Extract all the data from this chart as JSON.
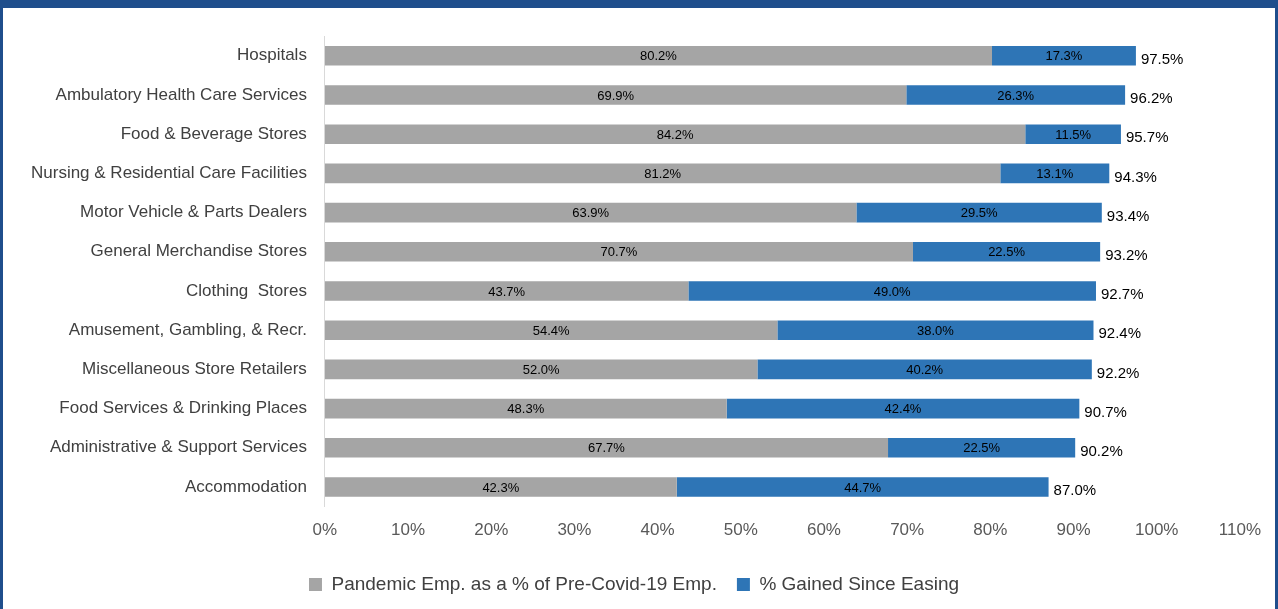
{
  "chart_data": {
    "type": "bar",
    "orientation": "horizontal",
    "stacked": true,
    "categories": [
      "Hospitals",
      "Ambulatory Health Care Services",
      "Food & Beverage Stores",
      "Nursing & Residential Care Facilities",
      "Motor Vehicle & Parts Dealers",
      "General Merchandise Stores",
      "Clothing  Stores",
      "Amusement, Gambling, & Recr.",
      "Miscellaneous Store Retailers",
      "Food Services & Drinking Places",
      "Administrative & Support Services",
      "Accommodation"
    ],
    "series": [
      {
        "name": "Pandemic Emp. as a % of Pre-Covid-19 Emp.",
        "color": "#a5a5a5",
        "values": [
          80.2,
          69.9,
          84.2,
          81.2,
          63.9,
          70.7,
          43.7,
          54.4,
          52.0,
          48.3,
          67.7,
          42.3
        ],
        "value_labels": [
          "80.2%",
          "69.9%",
          "84.2%",
          "81.2%",
          "63.9%",
          "70.7%",
          "43.7%",
          "54.4%",
          "52.0%",
          "48.3%",
          "67.7%",
          "42.3%"
        ]
      },
      {
        "name": "% Gained Since Easing",
        "color": "#2e75b6",
        "values": [
          17.3,
          26.3,
          11.5,
          13.1,
          29.5,
          22.5,
          49.0,
          38.0,
          40.2,
          42.4,
          22.5,
          44.7
        ],
        "value_labels": [
          "17.3%",
          "26.3%",
          "11.5%",
          "13.1%",
          "29.5%",
          "22.5%",
          "49.0%",
          "38.0%",
          "40.2%",
          "42.4%",
          "22.5%",
          "44.7%"
        ]
      }
    ],
    "totals": [
      "97.5%",
      "96.2%",
      "95.7%",
      "94.3%",
      "93.4%",
      "93.2%",
      "92.7%",
      "92.4%",
      "92.2%",
      "90.7%",
      "90.2%",
      "87.0%"
    ],
    "xlim": [
      0,
      110
    ],
    "xticks": [
      {
        "value": 0,
        "label": "0%"
      },
      {
        "value": 10,
        "label": "10%"
      },
      {
        "value": 20,
        "label": "20%"
      },
      {
        "value": 30,
        "label": "30%"
      },
      {
        "value": 40,
        "label": "40%"
      },
      {
        "value": 50,
        "label": "50%"
      },
      {
        "value": 60,
        "label": "60%"
      },
      {
        "value": 70,
        "label": "70%"
      },
      {
        "value": 80,
        "label": "80%"
      },
      {
        "value": 90,
        "label": "90%"
      },
      {
        "value": 100,
        "label": "100%"
      },
      {
        "value": 110,
        "label": "110%"
      }
    ],
    "grid": false,
    "legend": "bottom"
  }
}
